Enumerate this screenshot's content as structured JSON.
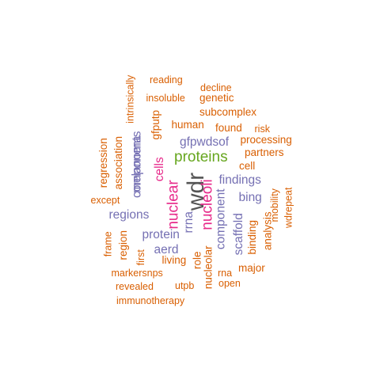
{
  "colors": {
    "orange": "#D95F02",
    "purple": "#7570B3",
    "magenta": "#E7298A",
    "green": "#66A61E",
    "dark": "#555555"
  },
  "words": [
    {
      "text": "wdr",
      "color": "dark",
      "size": "xl",
      "rot": -90
    },
    {
      "text": "proteins",
      "color": "green",
      "size": "l",
      "rot": 0
    },
    {
      "text": "nuclear",
      "color": "magenta",
      "size": "l",
      "rot": -90
    },
    {
      "text": "nucleoli",
      "color": "magenta",
      "size": "l",
      "rot": -90
    },
    {
      "text": "cells",
      "color": "magenta",
      "size": "m",
      "rot": -90
    },
    {
      "text": "findings",
      "color": "purple",
      "size": "m",
      "rot": 0
    },
    {
      "text": "gfpwdsof",
      "color": "purple",
      "size": "m",
      "rot": 0
    },
    {
      "text": "regions",
      "color": "purple",
      "size": "m",
      "rot": 0
    },
    {
      "text": "protein",
      "color": "purple",
      "size": "m",
      "rot": 0
    },
    {
      "text": "aerd",
      "color": "purple",
      "size": "m",
      "rot": 0
    },
    {
      "text": "bing",
      "color": "purple",
      "size": "m",
      "rot": 0
    },
    {
      "text": "melanoma",
      "color": "purple",
      "size": "m",
      "rot": -90
    },
    {
      "text": "components",
      "color": "purple",
      "size": "m",
      "rot": -90
    },
    {
      "text": "component",
      "color": "purple",
      "size": "m",
      "rot": -90
    },
    {
      "text": "scaffold",
      "color": "purple",
      "size": "m",
      "rot": -90
    },
    {
      "text": "rrna",
      "color": "purple",
      "size": "m",
      "rot": -90
    },
    {
      "text": "gfputp",
      "color": "orange",
      "size": "s",
      "rot": -90
    },
    {
      "text": "genetic",
      "color": "orange",
      "size": "s",
      "rot": 0
    },
    {
      "text": "subcomplex",
      "color": "orange",
      "size": "s",
      "rot": 0
    },
    {
      "text": "human",
      "color": "orange",
      "size": "s",
      "rot": 0
    },
    {
      "text": "found",
      "color": "orange",
      "size": "s",
      "rot": 0
    },
    {
      "text": "processing",
      "color": "orange",
      "size": "s",
      "rot": 0
    },
    {
      "text": "partners",
      "color": "orange",
      "size": "s",
      "rot": 0
    },
    {
      "text": "cell",
      "color": "orange",
      "size": "s",
      "rot": 0
    },
    {
      "text": "binding",
      "color": "orange",
      "size": "s",
      "rot": -90
    },
    {
      "text": "analysis",
      "color": "orange",
      "size": "s",
      "rot": -90
    },
    {
      "text": "major",
      "color": "orange",
      "size": "s",
      "rot": 0
    },
    {
      "text": "regression",
      "color": "orange",
      "size": "s",
      "rot": -90
    },
    {
      "text": "association",
      "color": "orange",
      "size": "s",
      "rot": -90
    },
    {
      "text": "living",
      "color": "orange",
      "size": "s",
      "rot": 0
    },
    {
      "text": "role",
      "color": "orange",
      "size": "s",
      "rot": -90
    },
    {
      "text": "nucleolar",
      "color": "orange",
      "size": "s",
      "rot": -90
    },
    {
      "text": "region",
      "color": "orange",
      "size": "s",
      "rot": -90
    },
    {
      "text": "markersnps",
      "color": "orange",
      "size": "xs",
      "rot": 0
    },
    {
      "text": "reading",
      "color": "orange",
      "size": "xs",
      "rot": 0
    },
    {
      "text": "decline",
      "color": "orange",
      "size": "xs",
      "rot": 0
    },
    {
      "text": "insoluble",
      "color": "orange",
      "size": "xs",
      "rot": 0
    },
    {
      "text": "intrinsically",
      "color": "orange",
      "size": "xs",
      "rot": -90
    },
    {
      "text": "risk",
      "color": "orange",
      "size": "xs",
      "rot": 0
    },
    {
      "text": "except",
      "color": "orange",
      "size": "xs",
      "rot": 0
    },
    {
      "text": "mobility",
      "color": "orange",
      "size": "xs",
      "rot": -90
    },
    {
      "text": "wdrepeat",
      "color": "orange",
      "size": "xs",
      "rot": -90
    },
    {
      "text": "frame",
      "color": "orange",
      "size": "xs",
      "rot": -90
    },
    {
      "text": "first",
      "color": "orange",
      "size": "xs",
      "rot": -90
    },
    {
      "text": "rna",
      "color": "orange",
      "size": "xs",
      "rot": 0
    },
    {
      "text": "open",
      "color": "orange",
      "size": "xs",
      "rot": 0
    },
    {
      "text": "revealed",
      "color": "orange",
      "size": "xs",
      "rot": 0
    },
    {
      "text": "utpb",
      "color": "orange",
      "size": "xs",
      "rot": 0
    },
    {
      "text": "immunotherapy",
      "color": "orange",
      "size": "xs",
      "rot": 0
    }
  ]
}
